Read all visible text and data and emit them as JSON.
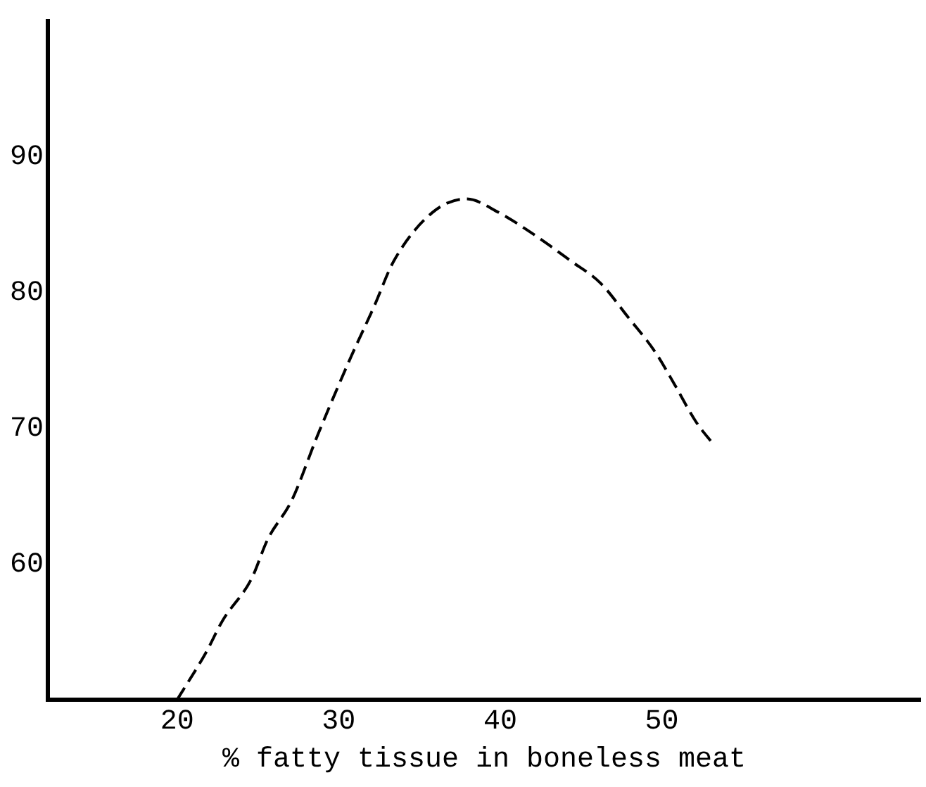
{
  "chart_data": {
    "type": "line",
    "xlabel": "% fatty tissue in boneless meat",
    "x": [
      20,
      21.8,
      22.8,
      24.6,
      25.6,
      27.1,
      28.7,
      30.7,
      32.2,
      33.4,
      35.8,
      37.9,
      39.9,
      42.3,
      44.4,
      46.2,
      47.9,
      49.6,
      50.8,
      52.1,
      53.2
    ],
    "values": [
      50,
      53.5,
      55.8,
      58.9,
      61.8,
      64.7,
      69.5,
      75.1,
      79,
      82.3,
      85.9,
      86.9,
      85.9,
      84.1,
      82.3,
      80.7,
      78.2,
      75.6,
      73.2,
      70.5,
      68.8
    ],
    "color": "#000000",
    "line_style": "dashed",
    "marker": "none",
    "xlim": [
      12,
      66
    ],
    "xticks": [
      20,
      30,
      40,
      50
    ],
    "ylim": [
      50,
      100
    ],
    "yticks": [
      60,
      70,
      80,
      90
    ],
    "grid": false,
    "legend": false
  }
}
